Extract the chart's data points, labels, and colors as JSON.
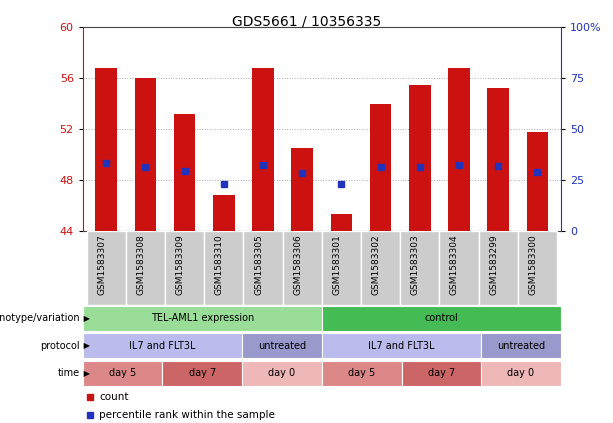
{
  "title": "GDS5661 / 10356335",
  "samples": [
    "GSM1583307",
    "GSM1583308",
    "GSM1583309",
    "GSM1583310",
    "GSM1583305",
    "GSM1583306",
    "GSM1583301",
    "GSM1583302",
    "GSM1583303",
    "GSM1583304",
    "GSM1583299",
    "GSM1583300"
  ],
  "bar_tops": [
    56.8,
    56.0,
    53.2,
    46.8,
    56.8,
    50.5,
    45.3,
    54.0,
    55.5,
    56.8,
    55.2,
    51.8
  ],
  "bar_base": 44.0,
  "blue_dots": [
    49.3,
    49.0,
    48.7,
    47.7,
    49.2,
    48.5,
    47.7,
    49.0,
    49.0,
    49.2,
    49.1,
    48.6
  ],
  "ylim_left": [
    44,
    60
  ],
  "yticks_left": [
    44,
    48,
    52,
    56,
    60
  ],
  "yticks_right": [
    0,
    25,
    50,
    75,
    100
  ],
  "ytick_labels_right": [
    "0",
    "25",
    "50",
    "75",
    "100%"
  ],
  "bar_color": "#cc1111",
  "dot_color": "#2233bb",
  "grid_color": "#888888",
  "genotype_row": {
    "label": "genotype/variation",
    "groups": [
      {
        "text": "TEL-AML1 expression",
        "start": 0,
        "end": 6,
        "color": "#99dd99"
      },
      {
        "text": "control",
        "start": 6,
        "end": 12,
        "color": "#44bb55"
      }
    ]
  },
  "protocol_row": {
    "label": "protocol",
    "groups": [
      {
        "text": "IL7 and FLT3L",
        "start": 0,
        "end": 4,
        "color": "#bbbbee"
      },
      {
        "text": "untreated",
        "start": 4,
        "end": 6,
        "color": "#9999cc"
      },
      {
        "text": "IL7 and FLT3L",
        "start": 6,
        "end": 10,
        "color": "#bbbbee"
      },
      {
        "text": "untreated",
        "start": 10,
        "end": 12,
        "color": "#9999cc"
      }
    ]
  },
  "time_row": {
    "label": "time",
    "groups": [
      {
        "text": "day 5",
        "start": 0,
        "end": 2,
        "color": "#dd8888"
      },
      {
        "text": "day 7",
        "start": 2,
        "end": 4,
        "color": "#cc6666"
      },
      {
        "text": "day 0",
        "start": 4,
        "end": 6,
        "color": "#eeb8b8"
      },
      {
        "text": "day 5",
        "start": 6,
        "end": 8,
        "color": "#dd8888"
      },
      {
        "text": "day 7",
        "start": 8,
        "end": 10,
        "color": "#cc6666"
      },
      {
        "text": "day 0",
        "start": 10,
        "end": 12,
        "color": "#eeb8b8"
      }
    ]
  },
  "legend_red_label": "count",
  "legend_blue_label": "percentile rank within the sample",
  "tick_label_color_left": "#cc1111",
  "tick_label_color_right": "#2233bb",
  "sample_cell_color": "#cccccc",
  "sample_cell_border": "#ffffff"
}
